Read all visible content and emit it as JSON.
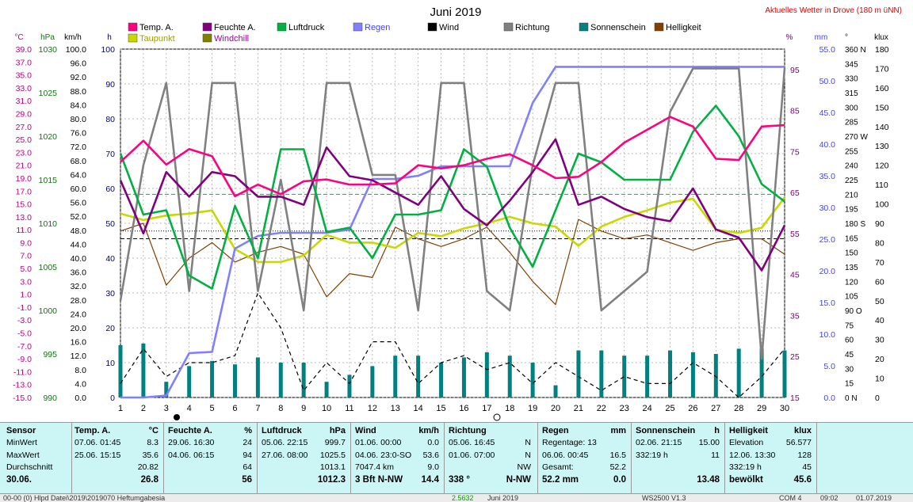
{
  "title": "Juni 2019",
  "location_note": "Aktuelles Wetter in Drove (180 m üNN)",
  "legend": [
    {
      "label": "Temp. A.",
      "color": "#ff0080"
    },
    {
      "label": "Feuchte A.",
      "color": "#800080"
    },
    {
      "label": "Luftdruck",
      "color": "#00b040"
    },
    {
      "label": "Regen",
      "color": "#8080ff"
    },
    {
      "label": "Wind",
      "color": "#000000"
    },
    {
      "label": "Richtung",
      "color": "#808080"
    },
    {
      "label": "Sonnenschein",
      "color": "#008080"
    },
    {
      "label": "Helligkeit",
      "color": "#804000"
    },
    {
      "label": "Taupunkt",
      "color": "#c8d800"
    },
    {
      "label": "Windchill",
      "color": "#808000"
    }
  ],
  "axes_units": {
    "temp": "°C",
    "pressure": "hPa",
    "wind": "km/h",
    "sun": "h",
    "humidity": "%",
    "rain": "mm",
    "direction": "°",
    "brightness": "klux"
  },
  "chart_data": {
    "type": "line",
    "x": [
      1,
      2,
      3,
      4,
      5,
      6,
      7,
      8,
      9,
      10,
      11,
      12,
      13,
      14,
      15,
      16,
      17,
      18,
      19,
      20,
      21,
      22,
      23,
      24,
      25,
      26,
      27,
      28,
      29,
      30
    ],
    "xlabel": "",
    "x_ticks": [
      "1",
      "2",
      "3",
      "4",
      "5",
      "6",
      "7",
      "8",
      "9",
      "10",
      "11",
      "12",
      "13",
      "14",
      "15",
      "16",
      "17",
      "18",
      "19",
      "20",
      "21",
      "22",
      "23",
      "24",
      "25",
      "26",
      "27",
      "28",
      "29",
      "30"
    ],
    "axes": {
      "temp": {
        "unit": "°C",
        "range": [
          -15,
          39
        ],
        "ticks": [
          "39.0",
          "37.0",
          "35.0",
          "33.0",
          "31.0",
          "29.0",
          "27.0",
          "25.0",
          "23.0",
          "21.0",
          "19.0",
          "17.0",
          "15.0",
          "13.0",
          "11.0",
          "9.0",
          "7.0",
          "5.0",
          "3.0",
          "1.0",
          "-1.0",
          "-3.0",
          "-5.0",
          "-7.0",
          "-9.0",
          "-11.0",
          "-13.0",
          "-15.0"
        ]
      },
      "pressure": {
        "unit": "hPa",
        "range": [
          990,
          1030
        ],
        "ticks": [
          "1030",
          "1025",
          "1020",
          "1015",
          "1010",
          "1005",
          "1000",
          "995",
          "990"
        ]
      },
      "wind": {
        "unit": "km/h",
        "range": [
          0,
          100
        ],
        "ticks": [
          "100.0",
          "96.0",
          "92.0",
          "88.0",
          "84.0",
          "80.0",
          "76.0",
          "72.0",
          "68.0",
          "64.0",
          "60.0",
          "56.0",
          "52.0",
          "48.0",
          "44.0",
          "40.0",
          "36.0",
          "32.0",
          "28.0",
          "24.0",
          "20.0",
          "16.0",
          "12.0",
          "8.0",
          "4.0",
          "0.0"
        ]
      },
      "sun": {
        "unit": "h",
        "range": [
          0,
          100
        ],
        "ticks": [
          "100",
          "90",
          "80",
          "70",
          "60",
          "50",
          "40",
          "30",
          "20",
          "10",
          "0"
        ]
      },
      "humidity": {
        "unit": "%",
        "range": [
          15,
          100
        ],
        "ticks": [
          "95",
          "85",
          "75",
          "65",
          "55",
          "45",
          "35",
          "25",
          "15"
        ]
      },
      "rain": {
        "unit": "mm",
        "range": [
          0,
          55
        ],
        "ticks": [
          "55.0",
          "50.0",
          "45.0",
          "40.0",
          "35.0",
          "30.0",
          "25.0",
          "20.0",
          "15.0",
          "10.0",
          "5.0",
          "0.0"
        ]
      },
      "direction": {
        "unit": "°",
        "range": [
          0,
          360
        ],
        "ticks": [
          "360 N",
          "345",
          "330",
          "315",
          "300",
          "285",
          "270 W",
          "255",
          "240",
          "225",
          "210",
          "195",
          "180 S",
          "165",
          "150",
          "135",
          "120",
          "105",
          "90 O",
          "75",
          "60",
          "45",
          "30",
          "15",
          "0 N"
        ]
      },
      "brightness": {
        "unit": "klux",
        "range": [
          0,
          180
        ],
        "ticks": [
          "180",
          "170",
          "160",
          "150",
          "140",
          "130",
          "120",
          "110",
          "100",
          "90",
          "80",
          "70",
          "60",
          "50",
          "40",
          "30",
          "20",
          "10",
          "0"
        ]
      }
    },
    "series": [
      {
        "name": "Temp. A.",
        "axis": "temp",
        "color": "#ff0080",
        "values": [
          21.5,
          24.8,
          21.1,
          23.5,
          22.4,
          16.2,
          18.0,
          16.5,
          18.5,
          18.8,
          18.0,
          18.0,
          18.2,
          21.0,
          20.5,
          21.0,
          22.0,
          22.7,
          21.0,
          19.0,
          19.2,
          21.5,
          24.5,
          26.5,
          28.5,
          27.0,
          22.0,
          21.8,
          27.0,
          27.2
        ]
      },
      {
        "name": "Feuchte A.",
        "axis": "humidity",
        "color": "#800080",
        "values": [
          68,
          55,
          70,
          64,
          70,
          69,
          64,
          64,
          62,
          76,
          69,
          68,
          65,
          62,
          69,
          61,
          57,
          63,
          70,
          78,
          62,
          64,
          61,
          59,
          58,
          66,
          56,
          54,
          46,
          57
        ]
      },
      {
        "name": "Luftdruck",
        "axis": "pressure",
        "color": "#00b040",
        "values": [
          1018,
          1011,
          1011.5,
          1004,
          1002.5,
          1012,
          1006,
          1018.5,
          1018.5,
          1009,
          1009.5,
          1006,
          1011,
          1011,
          1011.5,
          1018.5,
          1016.5,
          1009.5,
          1005,
          1011.5,
          1018,
          1017,
          1015,
          1015,
          1015,
          1020.5,
          1023.5,
          1020,
          1014.5,
          1012.5
        ]
      },
      {
        "name": "Regen",
        "axis": "rain",
        "color": "#8080ff",
        "values": [
          0,
          0,
          0.3,
          7,
          7.2,
          23.5,
          25.5,
          26,
          26,
          26,
          26.5,
          34.5,
          34.5,
          35,
          36.5,
          36.5,
          36.5,
          36.5,
          46.5,
          52.2,
          52.2,
          52.2,
          52.2,
          52.2,
          52.2,
          52.2,
          52.2,
          52.2,
          52.2,
          52.2
        ]
      },
      {
        "name": "Richtung",
        "axis": "direction",
        "color": "#808080",
        "values": [
          100,
          240,
          325,
          110,
          325,
          325,
          110,
          225,
          90,
          325,
          325,
          230,
          230,
          90,
          325,
          325,
          110,
          90,
          240,
          325,
          325,
          90,
          110,
          130,
          295,
          340,
          340,
          340,
          40,
          340
        ]
      },
      {
        "name": "Taupunkt",
        "axis": "temp",
        "color": "#c8d800",
        "values": [
          13.5,
          12.5,
          13.2,
          13.5,
          14.0,
          8.0,
          6.0,
          6.0,
          7.0,
          10.2,
          9.0,
          9.0,
          8.2,
          10.5,
          10.0,
          11.2,
          12.0,
          13.0,
          12.0,
          11.5,
          8.5,
          11.5,
          13.0,
          14.0,
          15.2,
          15.8,
          11.0,
          10.5,
          11.3,
          16.0
        ]
      },
      {
        "name": "Helligkeit",
        "axis": "brightness",
        "color": "#804000",
        "values": [
          86,
          90,
          58,
          72,
          80,
          70,
          75,
          78,
          74,
          52,
          64,
          62,
          88,
          82,
          78,
          82,
          88,
          75,
          60,
          48,
          92,
          86,
          82,
          84,
          80,
          76,
          80,
          82,
          82,
          74
        ]
      },
      {
        "name": "Wind",
        "axis": "wind",
        "color": "#000000",
        "dashed": true,
        "values": [
          4,
          14,
          6,
          10,
          10,
          12,
          30,
          20,
          2,
          10,
          4,
          16,
          16,
          4,
          10,
          12,
          8,
          10,
          4,
          10,
          6,
          2,
          6,
          4,
          4,
          10,
          6,
          0,
          6,
          14
        ]
      },
      {
        "name": "Sonnenschein",
        "axis": "sun",
        "color": "#008080",
        "type": "bar",
        "values": [
          15,
          15.5,
          4.5,
          9,
          10.5,
          9.5,
          11.5,
          10,
          10,
          4.5,
          6.5,
          9,
          12,
          12,
          10,
          11.5,
          13,
          12,
          10,
          3.5,
          13.5,
          13.5,
          12,
          12,
          13.5,
          13,
          12.5,
          14,
          14,
          13.5
        ]
      }
    ],
    "reference_lines": [
      {
        "axis": "temp",
        "value": 16.5,
        "color": "#00b040",
        "style": "dashed"
      },
      {
        "axis": "brightness",
        "value": 86,
        "color": "#000000",
        "style": "dotted"
      },
      {
        "axis": "brightness",
        "value": 82,
        "color": "#000000",
        "style": "dashed"
      }
    ],
    "grid": true
  },
  "summary": {
    "sensor": {
      "header": "Sensor",
      "rows": [
        "MinWert",
        "MaxWert",
        "Durchschnitt",
        "30.06."
      ]
    },
    "temp": {
      "header": "Temp. A.",
      "unit": "°C",
      "rows": [
        [
          "07.06.  01:45",
          "8.3"
        ],
        [
          "25.06.  15:15",
          "35.6"
        ],
        [
          "",
          "20.82"
        ],
        [
          "",
          "26.8"
        ]
      ]
    },
    "humidity": {
      "header": "Feuchte A.",
      "unit": "%",
      "rows": [
        [
          "29.06.  16:30",
          "24"
        ],
        [
          "04.06.  06:15",
          "94"
        ],
        [
          "",
          "64"
        ],
        [
          "",
          "56"
        ]
      ]
    },
    "pressure": {
      "header": "Luftdruck",
      "unit": "hPa",
      "rows": [
        [
          "05.06.  22:15",
          "999.7"
        ],
        [
          "27.06.  08:00",
          "1025.5"
        ],
        [
          "",
          "1013.1"
        ],
        [
          "",
          "1012.3"
        ]
      ]
    },
    "wind": {
      "header": "Wind",
      "unit": "km/h",
      "rows": [
        [
          "01.06.  00:00",
          "0.0"
        ],
        [
          "04.06.  23:0-SO",
          "53.6"
        ],
        [
          "7047.4 km",
          "9.0"
        ],
        [
          "3 Bft N-NW",
          "14.4"
        ]
      ]
    },
    "direction": {
      "header": "Richtung",
      "unit": "",
      "rows": [
        [
          "05.06.  16:45",
          "N"
        ],
        [
          "01.06.  07:00",
          "N"
        ],
        [
          "",
          "NW"
        ],
        [
          "338 °",
          "N-NW"
        ]
      ]
    },
    "rain": {
      "header": "Regen",
      "unit": "mm",
      "rows": [
        [
          "Regentage: 13",
          ""
        ],
        [
          "06.06.  00:45",
          "16.5"
        ],
        [
          "Gesamt:",
          "52.2"
        ],
        [
          "52.2 mm",
          "0.0"
        ]
      ]
    },
    "sun": {
      "header": "Sonnenschein",
      "unit": "h",
      "rows": [
        [
          "02.06.  21:15",
          "15.00"
        ],
        [
          "332:19 h",
          "11"
        ],
        [
          "",
          ""
        ],
        [
          "",
          "13.48"
        ]
      ]
    },
    "brightness": {
      "header": "Helligkeit",
      "unit": "klux",
      "rows": [
        [
          "Elevation",
          "56.577"
        ],
        [
          "12.06.  13:30",
          "128"
        ],
        [
          "332:19 h",
          "45"
        ],
        [
          "bewölkt",
          "45.6"
        ]
      ]
    }
  },
  "statusbar": {
    "path": "00-00 (0) Hlpd Datei\\2019\\2019070 Heftumgabesia",
    "speed": "2.5632",
    "month": "Juni 2019",
    "device": "WS2500 V1.3",
    "port": "COM 4",
    "time": "09:02",
    "date": "01.07.2019"
  }
}
